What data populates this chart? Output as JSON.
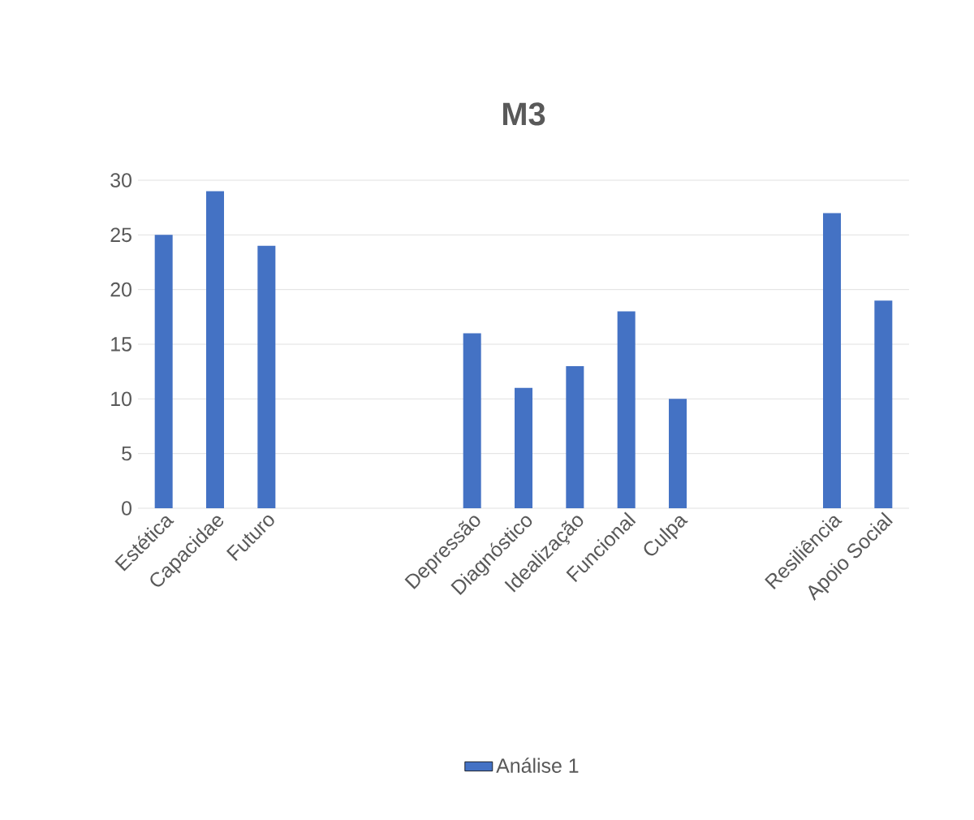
{
  "chart_data": {
    "type": "bar",
    "title": "M3",
    "categories": [
      "Estética",
      "Capacidae",
      "Futuro",
      null,
      null,
      null,
      "Depressão",
      "Diagnóstico",
      "Idealização",
      "Funcional",
      "Culpa",
      null,
      null,
      "Resiliência",
      "Apoio Social"
    ],
    "series": [
      {
        "name": "Análise 1",
        "color": "#4472c4",
        "values": [
          25,
          29,
          24,
          null,
          null,
          null,
          16,
          11,
          13,
          18,
          10,
          null,
          null,
          27,
          19
        ]
      }
    ],
    "ylim": [
      0,
      30
    ],
    "yticks": [
      0,
      5,
      10,
      15,
      20,
      25,
      30
    ],
    "grid": "y",
    "legend": "bottom"
  }
}
